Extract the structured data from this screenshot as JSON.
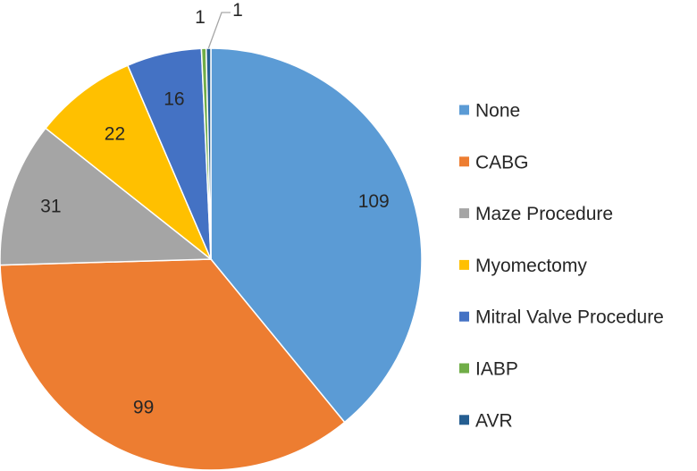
{
  "chart_data": {
    "type": "pie",
    "title": "",
    "legend_position": "right",
    "slices": [
      {
        "name": "None",
        "value": 109,
        "label": "109",
        "color": "#5B9BD5"
      },
      {
        "name": "CABG",
        "value": 99,
        "label": "99",
        "color": "#ED7D31"
      },
      {
        "name": "Maze Procedure",
        "value": 31,
        "label": "31",
        "color": "#A5A5A5"
      },
      {
        "name": "Myomectomy",
        "value": 22,
        "label": "22",
        "color": "#FFC000"
      },
      {
        "name": "Mitral Valve Procedure",
        "value": 16,
        "label": "16",
        "color": "#4472C4"
      },
      {
        "name": "IABP",
        "value": 1,
        "label": "1",
        "color": "#70AD47"
      },
      {
        "name": "AVR",
        "value": 1,
        "label": "1",
        "color": "#255E91"
      }
    ]
  }
}
